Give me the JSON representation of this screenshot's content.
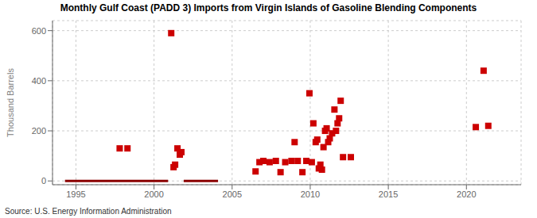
{
  "chart_data": {
    "type": "scatter",
    "title": "Monthly Gulf Coast (PADD 3) Imports from Virgin Islands of Gasoline Blending Components",
    "y_label": "Thousand Barrels",
    "source": "Source: U.S. Energy Information Administration",
    "xlim": [
      1993.5,
      2023.5
    ],
    "xticks": [
      1995,
      2000,
      2005,
      2010,
      2015,
      2020
    ],
    "ylim": [
      -15,
      640
    ],
    "yticks": [
      0,
      200,
      400,
      600
    ],
    "grid": true,
    "series": [
      {
        "type": "line",
        "line_style": "solid",
        "color": "#8b0000",
        "x": [
          1994.3,
          2000.9
        ],
        "values": [
          0,
          0
        ]
      },
      {
        "type": "line",
        "line_style": "solid",
        "color": "#8b0000",
        "x": [
          2001.9,
          2004.1
        ],
        "values": [
          0,
          0
        ]
      },
      {
        "type": "scatter",
        "marker": "square",
        "color": "#cc0000",
        "x": [
          1997.8,
          1998.3,
          2001.1,
          2001.25,
          2001.35,
          2001.5,
          2001.65,
          2001.75,
          2006.5,
          2006.75,
          2007.0,
          2007.4,
          2007.8,
          2008.1,
          2008.4,
          2008.8,
          2009.0,
          2009.2,
          2009.5,
          2009.75,
          2009.95,
          2010.1,
          2010.2,
          2010.35,
          2010.45,
          2010.55,
          2010.65,
          2010.75,
          2010.85,
          2010.95,
          2011.05,
          2011.15,
          2011.25,
          2011.4,
          2011.55,
          2011.65,
          2011.75,
          2011.85,
          2011.95,
          2012.1,
          2012.6,
          2020.6,
          2021.1,
          2021.4
        ],
        "values": [
          130,
          130,
          590,
          55,
          65,
          130,
          105,
          115,
          38,
          75,
          80,
          75,
          80,
          35,
          75,
          80,
          155,
          80,
          35,
          80,
          350,
          75,
          230,
          155,
          165,
          50,
          65,
          45,
          135,
          200,
          210,
          155,
          170,
          190,
          285,
          200,
          230,
          250,
          320,
          95,
          95,
          215,
          440,
          220
        ]
      }
    ]
  }
}
